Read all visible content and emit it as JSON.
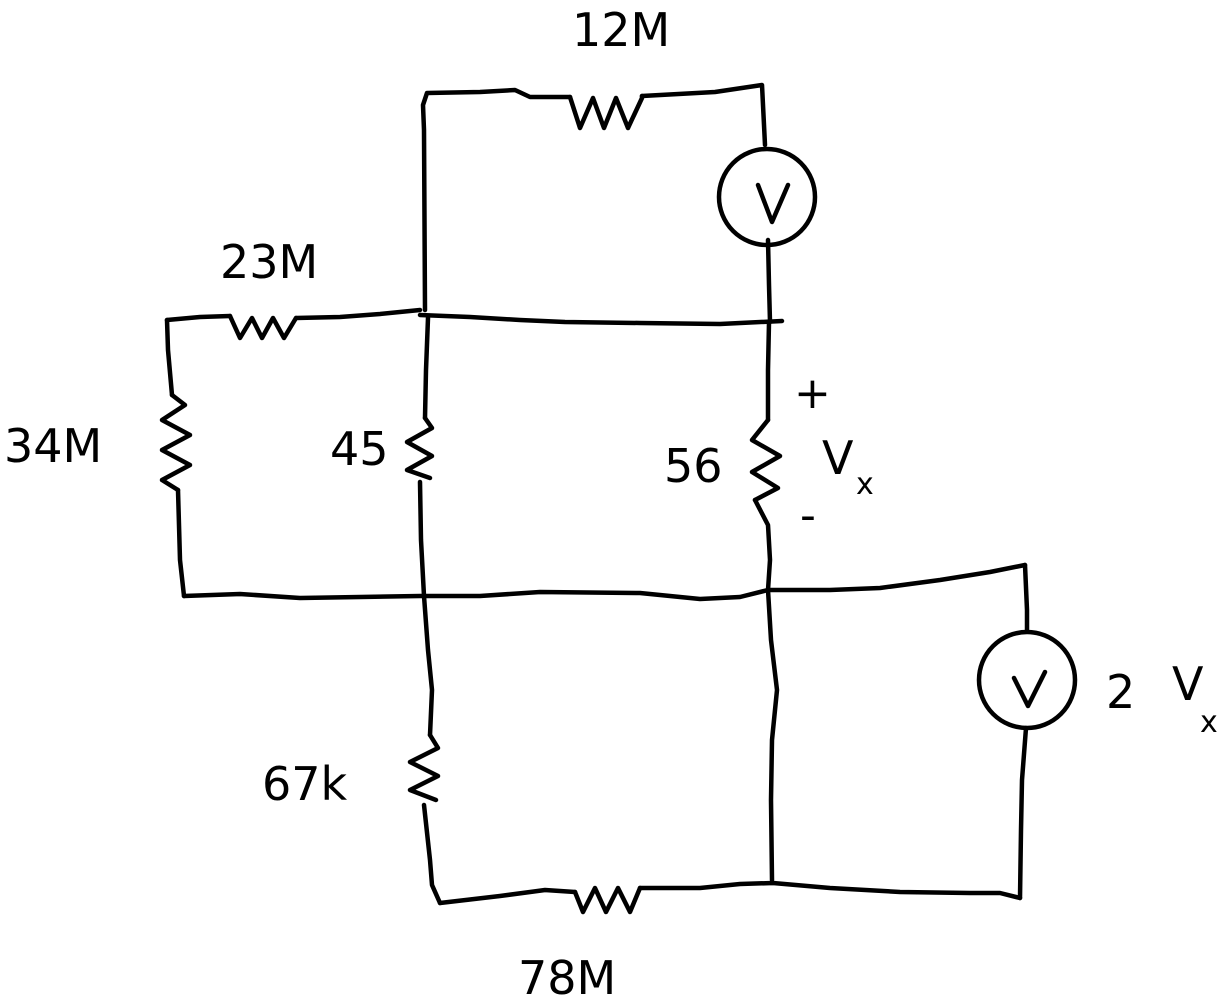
{
  "resistors": {
    "r_top": "12M",
    "r_upper_left": "23M",
    "r_left": "34M",
    "r_center_left": "45",
    "r_center_right": "56",
    "r_lower_left": "67k",
    "r_bottom": "78M"
  },
  "sources": {
    "top_source_symbol": "V",
    "dependent_source_symbol": "V",
    "dependent_source_gain": "2",
    "dependent_source_var": "V",
    "dependent_source_sub": "x"
  },
  "measurement": {
    "plus": "+",
    "minus": "-",
    "var": "V",
    "sub": "x"
  },
  "colors": {
    "ink": "#000000",
    "paper": "#ffffff"
  }
}
